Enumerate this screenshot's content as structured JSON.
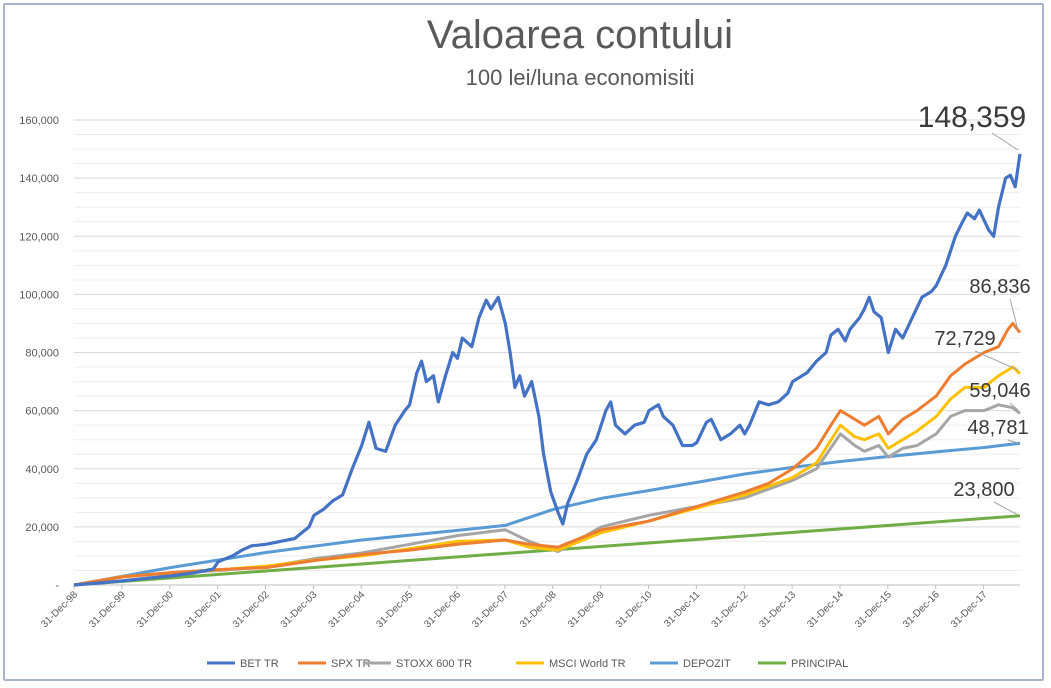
{
  "chart_data": {
    "type": "line",
    "title": "Valoarea contului",
    "subtitle": "100 lei/luna economisiti",
    "xlabel": "",
    "ylabel": "",
    "ylim": [
      0,
      160000
    ],
    "yticks": [
      {
        "value": 0,
        "label": "-"
      },
      {
        "value": 20000,
        "label": "20,000"
      },
      {
        "value": 40000,
        "label": "40,000"
      },
      {
        "value": 60000,
        "label": "60,000"
      },
      {
        "value": 80000,
        "label": "80,000"
      },
      {
        "value": 100000,
        "label": "100,000"
      },
      {
        "value": 120000,
        "label": "120,000"
      },
      {
        "value": 140000,
        "label": "140,000"
      },
      {
        "value": 160000,
        "label": "160,000"
      }
    ],
    "xticks": [
      "31-Dec-98",
      "31-Dec-99",
      "31-Dec-00",
      "31-Dec-01",
      "31-Dec-02",
      "31-Dec-03",
      "31-Dec-04",
      "31-Dec-05",
      "31-Dec-06",
      "31-Dec-07",
      "31-Dec-08",
      "31-Dec-09",
      "31-Dec-10",
      "31-Dec-11",
      "31-Dec-12",
      "31-Dec-13",
      "31-Dec-14",
      "31-Dec-15",
      "31-Dec-16",
      "31-Dec-17"
    ],
    "x_start": 1998.99,
    "x_end": 2018.75,
    "grid": true,
    "legend_position": "bottom",
    "series": [
      {
        "name": "BET TR",
        "color": "#4472c4",
        "points": [
          [
            1998.99,
            0
          ],
          [
            1999.5,
            700
          ],
          [
            2000,
            1400
          ],
          [
            2000.5,
            2300
          ],
          [
            2001,
            3100
          ],
          [
            2001.5,
            4200
          ],
          [
            2001.9,
            5500
          ],
          [
            2002,
            8000
          ],
          [
            2002.3,
            10000
          ],
          [
            2002.5,
            12000
          ],
          [
            2002.7,
            13500
          ],
          [
            2003,
            14000
          ],
          [
            2003.3,
            15000
          ],
          [
            2003.6,
            16000
          ],
          [
            2003.9,
            20000
          ],
          [
            2004,
            24000
          ],
          [
            2004.2,
            26000
          ],
          [
            2004.4,
            29000
          ],
          [
            2004.6,
            31000
          ],
          [
            2004.8,
            40000
          ],
          [
            2005,
            48000
          ],
          [
            2005.15,
            56000
          ],
          [
            2005.3,
            47000
          ],
          [
            2005.5,
            46000
          ],
          [
            2005.7,
            55000
          ],
          [
            2005.9,
            60000
          ],
          [
            2006,
            62000
          ],
          [
            2006.15,
            73000
          ],
          [
            2006.25,
            77000
          ],
          [
            2006.35,
            70000
          ],
          [
            2006.5,
            72000
          ],
          [
            2006.6,
            63000
          ],
          [
            2006.75,
            72000
          ],
          [
            2006.9,
            80000
          ],
          [
            2007,
            78000
          ],
          [
            2007.1,
            85000
          ],
          [
            2007.3,
            82000
          ],
          [
            2007.45,
            92000
          ],
          [
            2007.6,
            98000
          ],
          [
            2007.7,
            95000
          ],
          [
            2007.85,
            99000
          ],
          [
            2008,
            90000
          ],
          [
            2008.1,
            80000
          ],
          [
            2008.2,
            68000
          ],
          [
            2008.3,
            72000
          ],
          [
            2008.4,
            65000
          ],
          [
            2008.55,
            70000
          ],
          [
            2008.7,
            58000
          ],
          [
            2008.8,
            45000
          ],
          [
            2008.95,
            32000
          ],
          [
            2009.1,
            25000
          ],
          [
            2009.2,
            21000
          ],
          [
            2009.3,
            28000
          ],
          [
            2009.5,
            36000
          ],
          [
            2009.7,
            45000
          ],
          [
            2009.9,
            50000
          ],
          [
            2010,
            55000
          ],
          [
            2010.1,
            60000
          ],
          [
            2010.2,
            63000
          ],
          [
            2010.3,
            55000
          ],
          [
            2010.5,
            52000
          ],
          [
            2010.7,
            55000
          ],
          [
            2010.9,
            56000
          ],
          [
            2011,
            60000
          ],
          [
            2011.2,
            62000
          ],
          [
            2011.3,
            58000
          ],
          [
            2011.5,
            55000
          ],
          [
            2011.7,
            48000
          ],
          [
            2011.9,
            48000
          ],
          [
            2012,
            49000
          ],
          [
            2012.2,
            56000
          ],
          [
            2012.3,
            57000
          ],
          [
            2012.5,
            50000
          ],
          [
            2012.7,
            52000
          ],
          [
            2012.9,
            55000
          ],
          [
            2013,
            52000
          ],
          [
            2013.1,
            55000
          ],
          [
            2013.3,
            63000
          ],
          [
            2013.5,
            62000
          ],
          [
            2013.7,
            63000
          ],
          [
            2013.9,
            66000
          ],
          [
            2014,
            70000
          ],
          [
            2014.3,
            73000
          ],
          [
            2014.5,
            77000
          ],
          [
            2014.7,
            80000
          ],
          [
            2014.8,
            86000
          ],
          [
            2014.95,
            88000
          ],
          [
            2015.1,
            84000
          ],
          [
            2015.2,
            88000
          ],
          [
            2015.4,
            92000
          ],
          [
            2015.5,
            95000
          ],
          [
            2015.6,
            99000
          ],
          [
            2015.7,
            94000
          ],
          [
            2015.85,
            92000
          ],
          [
            2016,
            80000
          ],
          [
            2016.15,
            88000
          ],
          [
            2016.3,
            85000
          ],
          [
            2016.5,
            92000
          ],
          [
            2016.7,
            99000
          ],
          [
            2016.9,
            101000
          ],
          [
            2017,
            103000
          ],
          [
            2017.2,
            110000
          ],
          [
            2017.4,
            120000
          ],
          [
            2017.55,
            125000
          ],
          [
            2017.65,
            128000
          ],
          [
            2017.8,
            126000
          ],
          [
            2017.9,
            129000
          ],
          [
            2018.1,
            122000
          ],
          [
            2018.2,
            120000
          ],
          [
            2018.3,
            130000
          ],
          [
            2018.45,
            140000
          ],
          [
            2018.55,
            141000
          ],
          [
            2018.65,
            137000
          ],
          [
            2018.75,
            148359
          ]
        ],
        "end_label": "148,359"
      },
      {
        "name": "SPX TR",
        "color": "#ed7d31",
        "points": [
          [
            1998.99,
            0
          ],
          [
            2000,
            2800
          ],
          [
            2001,
            4200
          ],
          [
            2002,
            5300
          ],
          [
            2003,
            6000
          ],
          [
            2004,
            8400
          ],
          [
            2005,
            10500
          ],
          [
            2006,
            12000
          ],
          [
            2007,
            14000
          ],
          [
            2008,
            15500
          ],
          [
            2008.5,
            14000
          ],
          [
            2009.1,
            13000
          ],
          [
            2010,
            19000
          ],
          [
            2011,
            22000
          ],
          [
            2012,
            27000
          ],
          [
            2013,
            32000
          ],
          [
            2013.5,
            35000
          ],
          [
            2014,
            40000
          ],
          [
            2014.5,
            47000
          ],
          [
            2014.8,
            55000
          ],
          [
            2015,
            60000
          ],
          [
            2015.3,
            57000
          ],
          [
            2015.5,
            55000
          ],
          [
            2015.8,
            58000
          ],
          [
            2016,
            52000
          ],
          [
            2016.3,
            57000
          ],
          [
            2016.6,
            60000
          ],
          [
            2017,
            65000
          ],
          [
            2017.3,
            72000
          ],
          [
            2017.6,
            76000
          ],
          [
            2018,
            80000
          ],
          [
            2018.3,
            82000
          ],
          [
            2018.5,
            88000
          ],
          [
            2018.6,
            90000
          ],
          [
            2018.75,
            86836
          ]
        ],
        "end_label": "86,836"
      },
      {
        "name": "STOXX 600 TR",
        "color": "#a5a5a5",
        "points": [
          [
            1998.99,
            0
          ],
          [
            2000,
            3000
          ],
          [
            2001,
            4000
          ],
          [
            2002,
            5000
          ],
          [
            2003,
            6200
          ],
          [
            2004,
            9000
          ],
          [
            2005,
            11000
          ],
          [
            2006,
            14000
          ],
          [
            2007,
            17000
          ],
          [
            2008,
            19000
          ],
          [
            2008.5,
            15000
          ],
          [
            2009.1,
            11500
          ],
          [
            2010,
            20000
          ],
          [
            2011,
            24000
          ],
          [
            2012,
            27000
          ],
          [
            2013,
            30000
          ],
          [
            2014,
            36000
          ],
          [
            2014.5,
            40000
          ],
          [
            2015,
            52000
          ],
          [
            2015.3,
            48000
          ],
          [
            2015.5,
            46000
          ],
          [
            2015.8,
            48000
          ],
          [
            2016,
            44000
          ],
          [
            2016.3,
            47000
          ],
          [
            2016.6,
            48000
          ],
          [
            2017,
            52000
          ],
          [
            2017.3,
            58000
          ],
          [
            2017.6,
            60000
          ],
          [
            2018,
            60000
          ],
          [
            2018.3,
            62000
          ],
          [
            2018.6,
            61000
          ],
          [
            2018.75,
            59046
          ]
        ],
        "end_label": "59,046"
      },
      {
        "name": "MSCI World TR",
        "color": "#ffc000",
        "points": [
          [
            1998.99,
            0
          ],
          [
            2000,
            2800
          ],
          [
            2001,
            4200
          ],
          [
            2002,
            5200
          ],
          [
            2003,
            6500
          ],
          [
            2004,
            8500
          ],
          [
            2005,
            10000
          ],
          [
            2006,
            12500
          ],
          [
            2007,
            15000
          ],
          [
            2008,
            15500
          ],
          [
            2008.5,
            13000
          ],
          [
            2009.1,
            12000
          ],
          [
            2010,
            18000
          ],
          [
            2011,
            22000
          ],
          [
            2012,
            26500
          ],
          [
            2013,
            31000
          ],
          [
            2014,
            37000
          ],
          [
            2014.5,
            42000
          ],
          [
            2015,
            55000
          ],
          [
            2015.3,
            51000
          ],
          [
            2015.5,
            50000
          ],
          [
            2015.8,
            52000
          ],
          [
            2016,
            47000
          ],
          [
            2016.3,
            50000
          ],
          [
            2016.6,
            53000
          ],
          [
            2017,
            58000
          ],
          [
            2017.3,
            64000
          ],
          [
            2017.6,
            68000
          ],
          [
            2018,
            68000
          ],
          [
            2018.3,
            72000
          ],
          [
            2018.6,
            75000
          ],
          [
            2018.75,
            72729
          ]
        ],
        "end_label": "72,729"
      },
      {
        "name": "DEPOZIT",
        "color": "#5b9bd5",
        "points": [
          [
            1998.99,
            0
          ],
          [
            2001,
            6000
          ],
          [
            2003,
            11200
          ],
          [
            2005,
            15500
          ],
          [
            2007,
            18800
          ],
          [
            2008,
            20500
          ],
          [
            2009,
            26000
          ],
          [
            2010,
            29800
          ],
          [
            2011,
            32500
          ],
          [
            2012,
            35300
          ],
          [
            2013,
            38200
          ],
          [
            2014,
            40500
          ],
          [
            2015,
            42500
          ],
          [
            2016,
            44200
          ],
          [
            2017,
            45800
          ],
          [
            2018,
            47300
          ],
          [
            2018.75,
            48781
          ]
        ],
        "end_label": "48,781"
      },
      {
        "name": "PRINCIPAL",
        "color": "#70ad47",
        "points": [
          [
            1998.99,
            0
          ],
          [
            2018.75,
            23800
          ]
        ],
        "end_label": "23,800"
      }
    ]
  }
}
